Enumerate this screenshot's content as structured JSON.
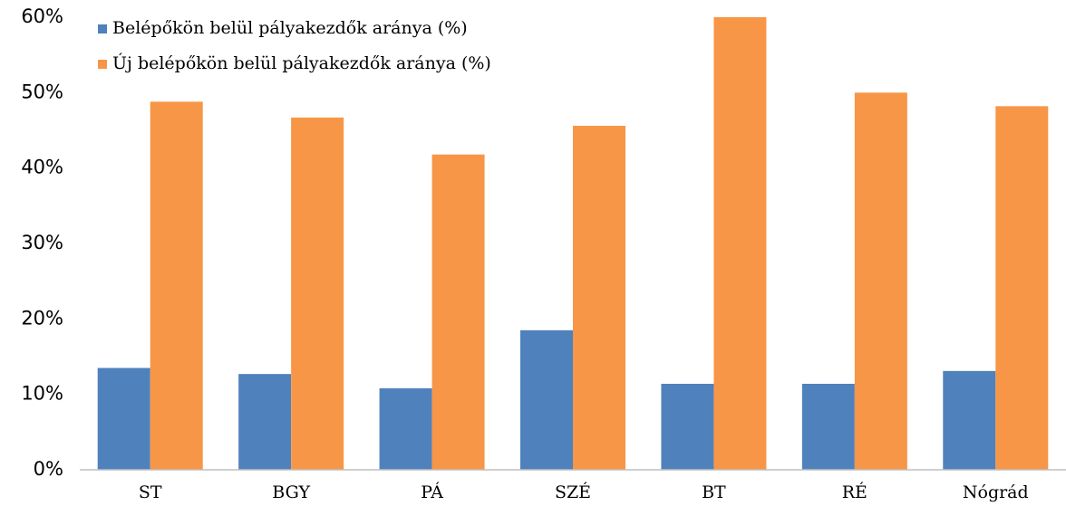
{
  "chart_data": {
    "type": "bar",
    "categories": [
      "ST",
      "BGY",
      "PÁ",
      "SZÉ",
      "BT",
      "RÉ",
      "Nógrád"
    ],
    "series": [
      {
        "name": "Belépőkön belül pályakezdők aránya (%)",
        "color": "#4f81bd",
        "values": [
          13.5,
          12.7,
          10.8,
          18.5,
          11.4,
          11.4,
          13.1
        ]
      },
      {
        "name": "Új belépőkön belül pályakezdők aránya (%)",
        "color": "#f79646",
        "values": [
          48.8,
          46.7,
          41.8,
          45.6,
          60,
          50,
          48.2
        ]
      }
    ],
    "ylim": [
      0,
      60
    ],
    "yticks": [
      {
        "value": 0,
        "label": "0%"
      },
      {
        "value": 10,
        "label": "10%"
      },
      {
        "value": 20,
        "label": "20%"
      },
      {
        "value": 30,
        "label": "30%"
      },
      {
        "value": 40,
        "label": "40%"
      },
      {
        "value": 50,
        "label": "50%"
      },
      {
        "value": 60,
        "label": "60%"
      }
    ],
    "grid": false,
    "legend": "upper left"
  }
}
